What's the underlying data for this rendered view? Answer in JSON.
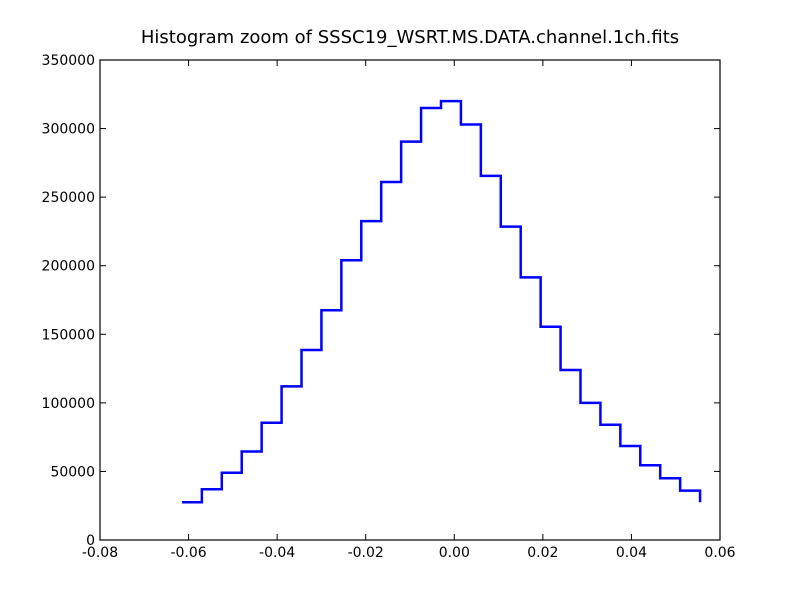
{
  "chart_data": {
    "type": "line",
    "title": "Histogram zoom of SSSC19_WSRT.MS.DATA.channel.1ch.fits",
    "xlabel": "",
    "ylabel": "",
    "xlim": [
      -0.08,
      0.06
    ],
    "ylim": [
      0,
      350000
    ],
    "xticks": [
      "-0.08",
      "-0.06",
      "-0.04",
      "-0.02",
      "0.00",
      "0.02",
      "0.04",
      "0.06"
    ],
    "yticks": [
      "0",
      "50000",
      "100000",
      "150000",
      "200000",
      "250000",
      "300000",
      "350000"
    ],
    "grid": false,
    "legend": "none",
    "line_color": "#0000ff",
    "bin_edges": [
      -0.0615,
      -0.057,
      -0.0525,
      -0.048,
      -0.0435,
      -0.039,
      -0.0345,
      -0.03,
      -0.0255,
      -0.021,
      -0.0165,
      -0.012,
      -0.0075,
      -0.003,
      0.0015,
      0.006,
      0.0105,
      0.015,
      0.0195,
      0.024,
      0.0285,
      0.033,
      0.0375,
      0.042,
      0.0465,
      0.051,
      0.0555
    ],
    "values": [
      27500,
      37000,
      49000,
      64500,
      85500,
      112000,
      138500,
      167500,
      204000,
      232500,
      261000,
      290500,
      315000,
      320000,
      303000,
      265500,
      228500,
      191500,
      155500,
      124000,
      100000,
      84000,
      68500,
      54500,
      45000,
      36000,
      27500
    ]
  }
}
